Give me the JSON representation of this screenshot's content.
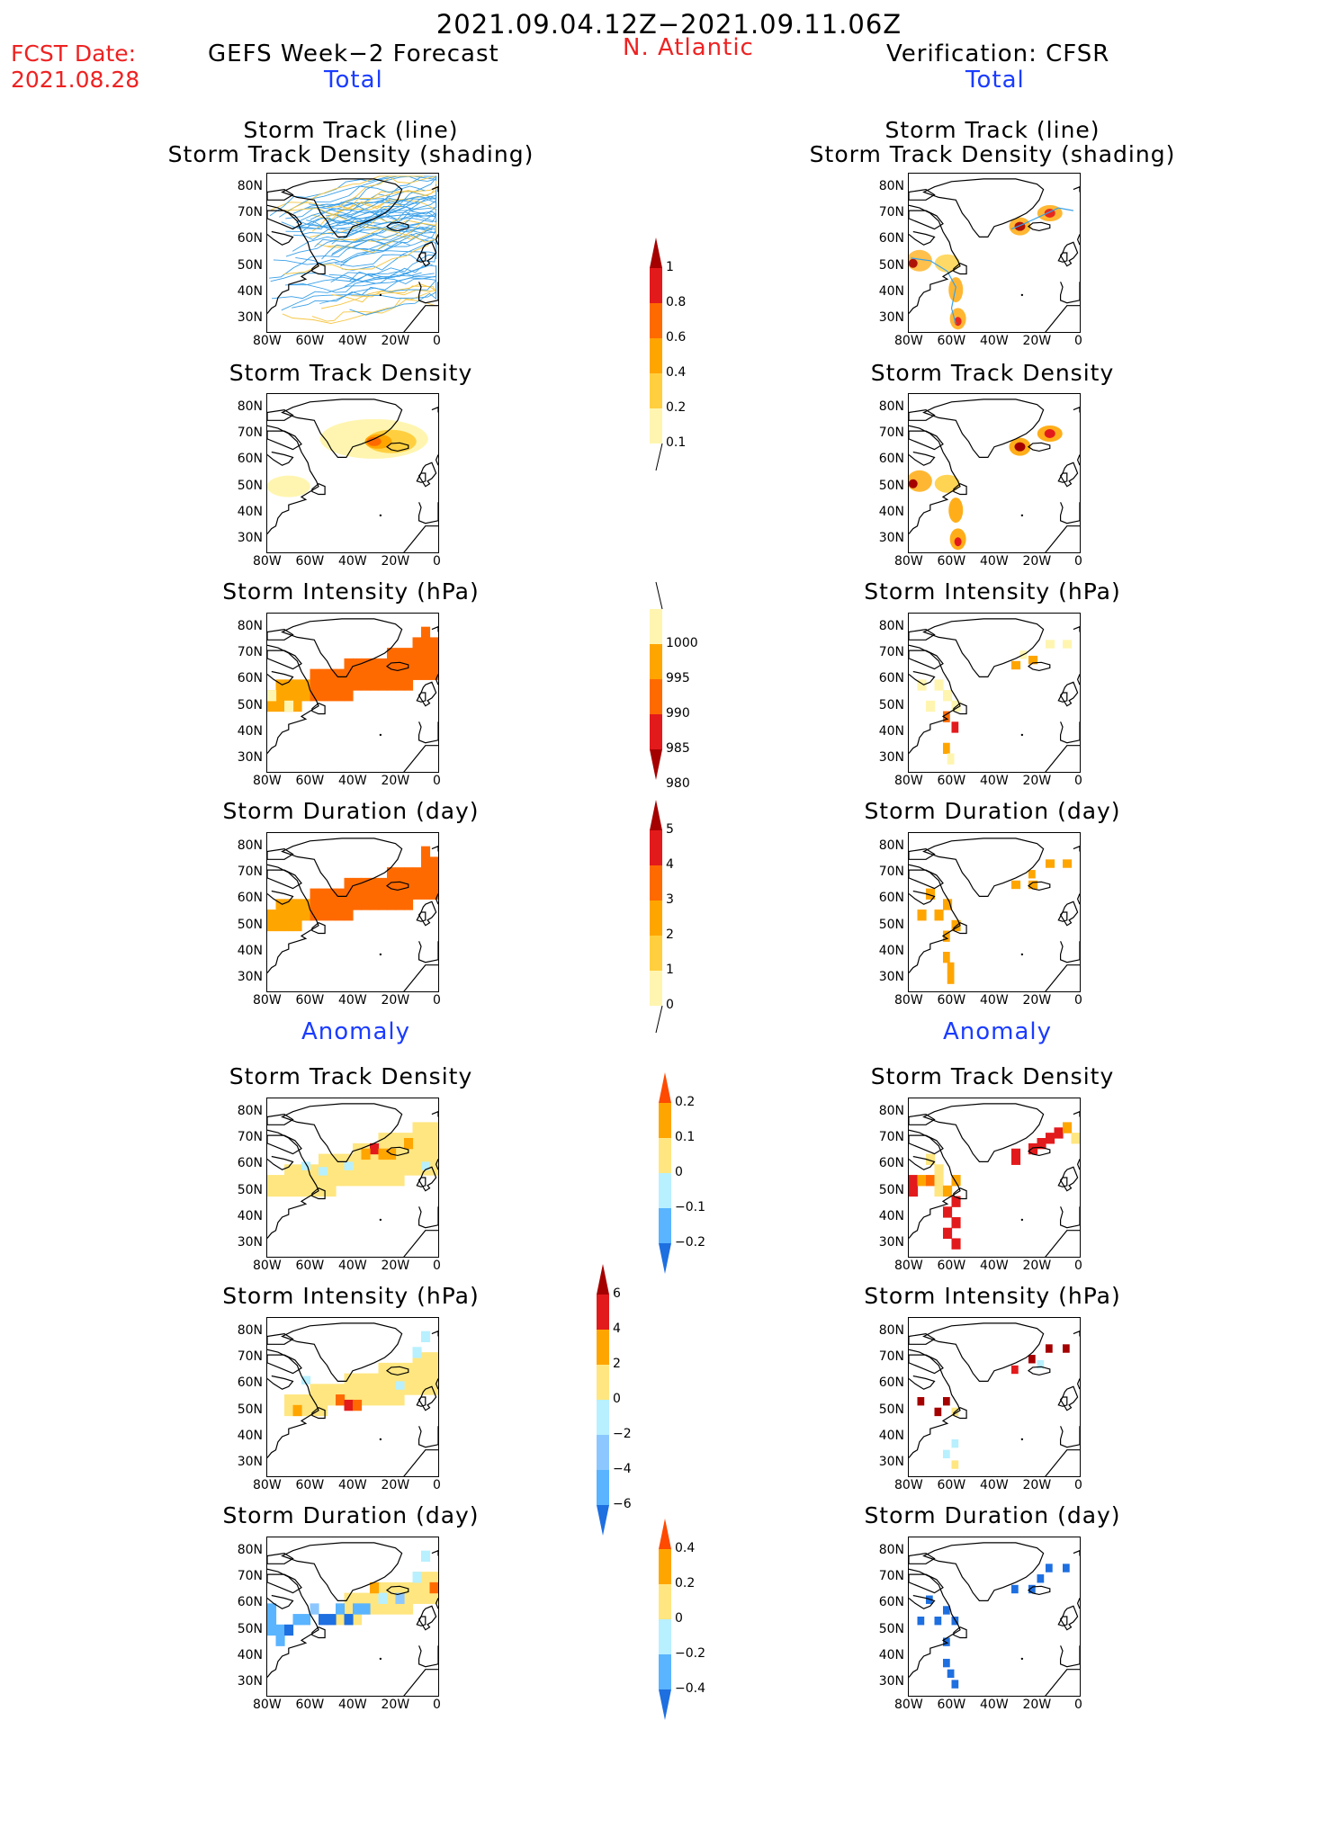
{
  "header": {
    "date_range": "2021.09.04.12Z−2021.09.11.06Z",
    "fcst_label": "FCST Date:",
    "fcst_date": "2021.08.28",
    "left_title": "GEFS Week−2 Forecast",
    "region": "N. Atlantic",
    "right_title": "Verification: CFSR",
    "total_left": "Total",
    "total_right": "Total",
    "anomaly_left": "Anomaly",
    "anomaly_right": "Anomaly"
  },
  "panel_titles": {
    "track_line": "Storm Track (line)",
    "track_density_shading": "Storm Track Density (shading)",
    "track_density": "Storm Track Density",
    "intensity": "Storm Intensity (hPa)",
    "duration": "Storm Duration (day)"
  },
  "axes": {
    "lat_labels": [
      "80N",
      "70N",
      "60N",
      "50N",
      "40N",
      "30N"
    ],
    "lon_labels": [
      "80W",
      "60W",
      "40W",
      "20W",
      "0"
    ]
  },
  "colorbars": {
    "density": {
      "labels": [
        "1",
        "0.8",
        "0.6",
        "0.4",
        "0.2",
        "0.1"
      ],
      "colors": [
        "#a50000",
        "#e31a1c",
        "#ff6a00",
        "#ffa500",
        "#ffcf40",
        "#fff5b0"
      ]
    },
    "intensity": {
      "labels": [
        "1000",
        "995",
        "990",
        "985",
        "980"
      ],
      "colors": [
        "#fff5b0",
        "#ffa500",
        "#ff6a00",
        "#e31a1c",
        "#a50000"
      ]
    },
    "duration": {
      "labels": [
        "5",
        "4",
        "3",
        "2",
        "1",
        "0"
      ],
      "colors": [
        "#a50000",
        "#e31a1c",
        "#ff6a00",
        "#ffa500",
        "#ffcf40",
        "#fff5b0"
      ]
    },
    "anom_density": {
      "labels": [
        "0.2",
        "0.1",
        "0",
        "−0.1",
        "−0.2"
      ],
      "colors": [
        "#ff4a00",
        "#ffa500",
        "#ffe680",
        "#b8f0ff",
        "#5ab4ff",
        "#1e6fe0"
      ]
    },
    "anom_intensity": {
      "labels": [
        "6",
        "4",
        "2",
        "0",
        "−2",
        "−4",
        "−6"
      ],
      "colors": [
        "#a50000",
        "#e31a1c",
        "#ffa500",
        "#ffe680",
        "#b8f0ff",
        "#8cc8ff",
        "#5ab4ff",
        "#1e6fe0"
      ]
    },
    "anom_duration": {
      "labels": [
        "0.4",
        "0.2",
        "0",
        "−0.2",
        "−0.4"
      ],
      "colors": [
        "#ff4a00",
        "#ffa500",
        "#ffe680",
        "#b8f0ff",
        "#5ab4ff",
        "#1e6fe0"
      ]
    }
  }
}
